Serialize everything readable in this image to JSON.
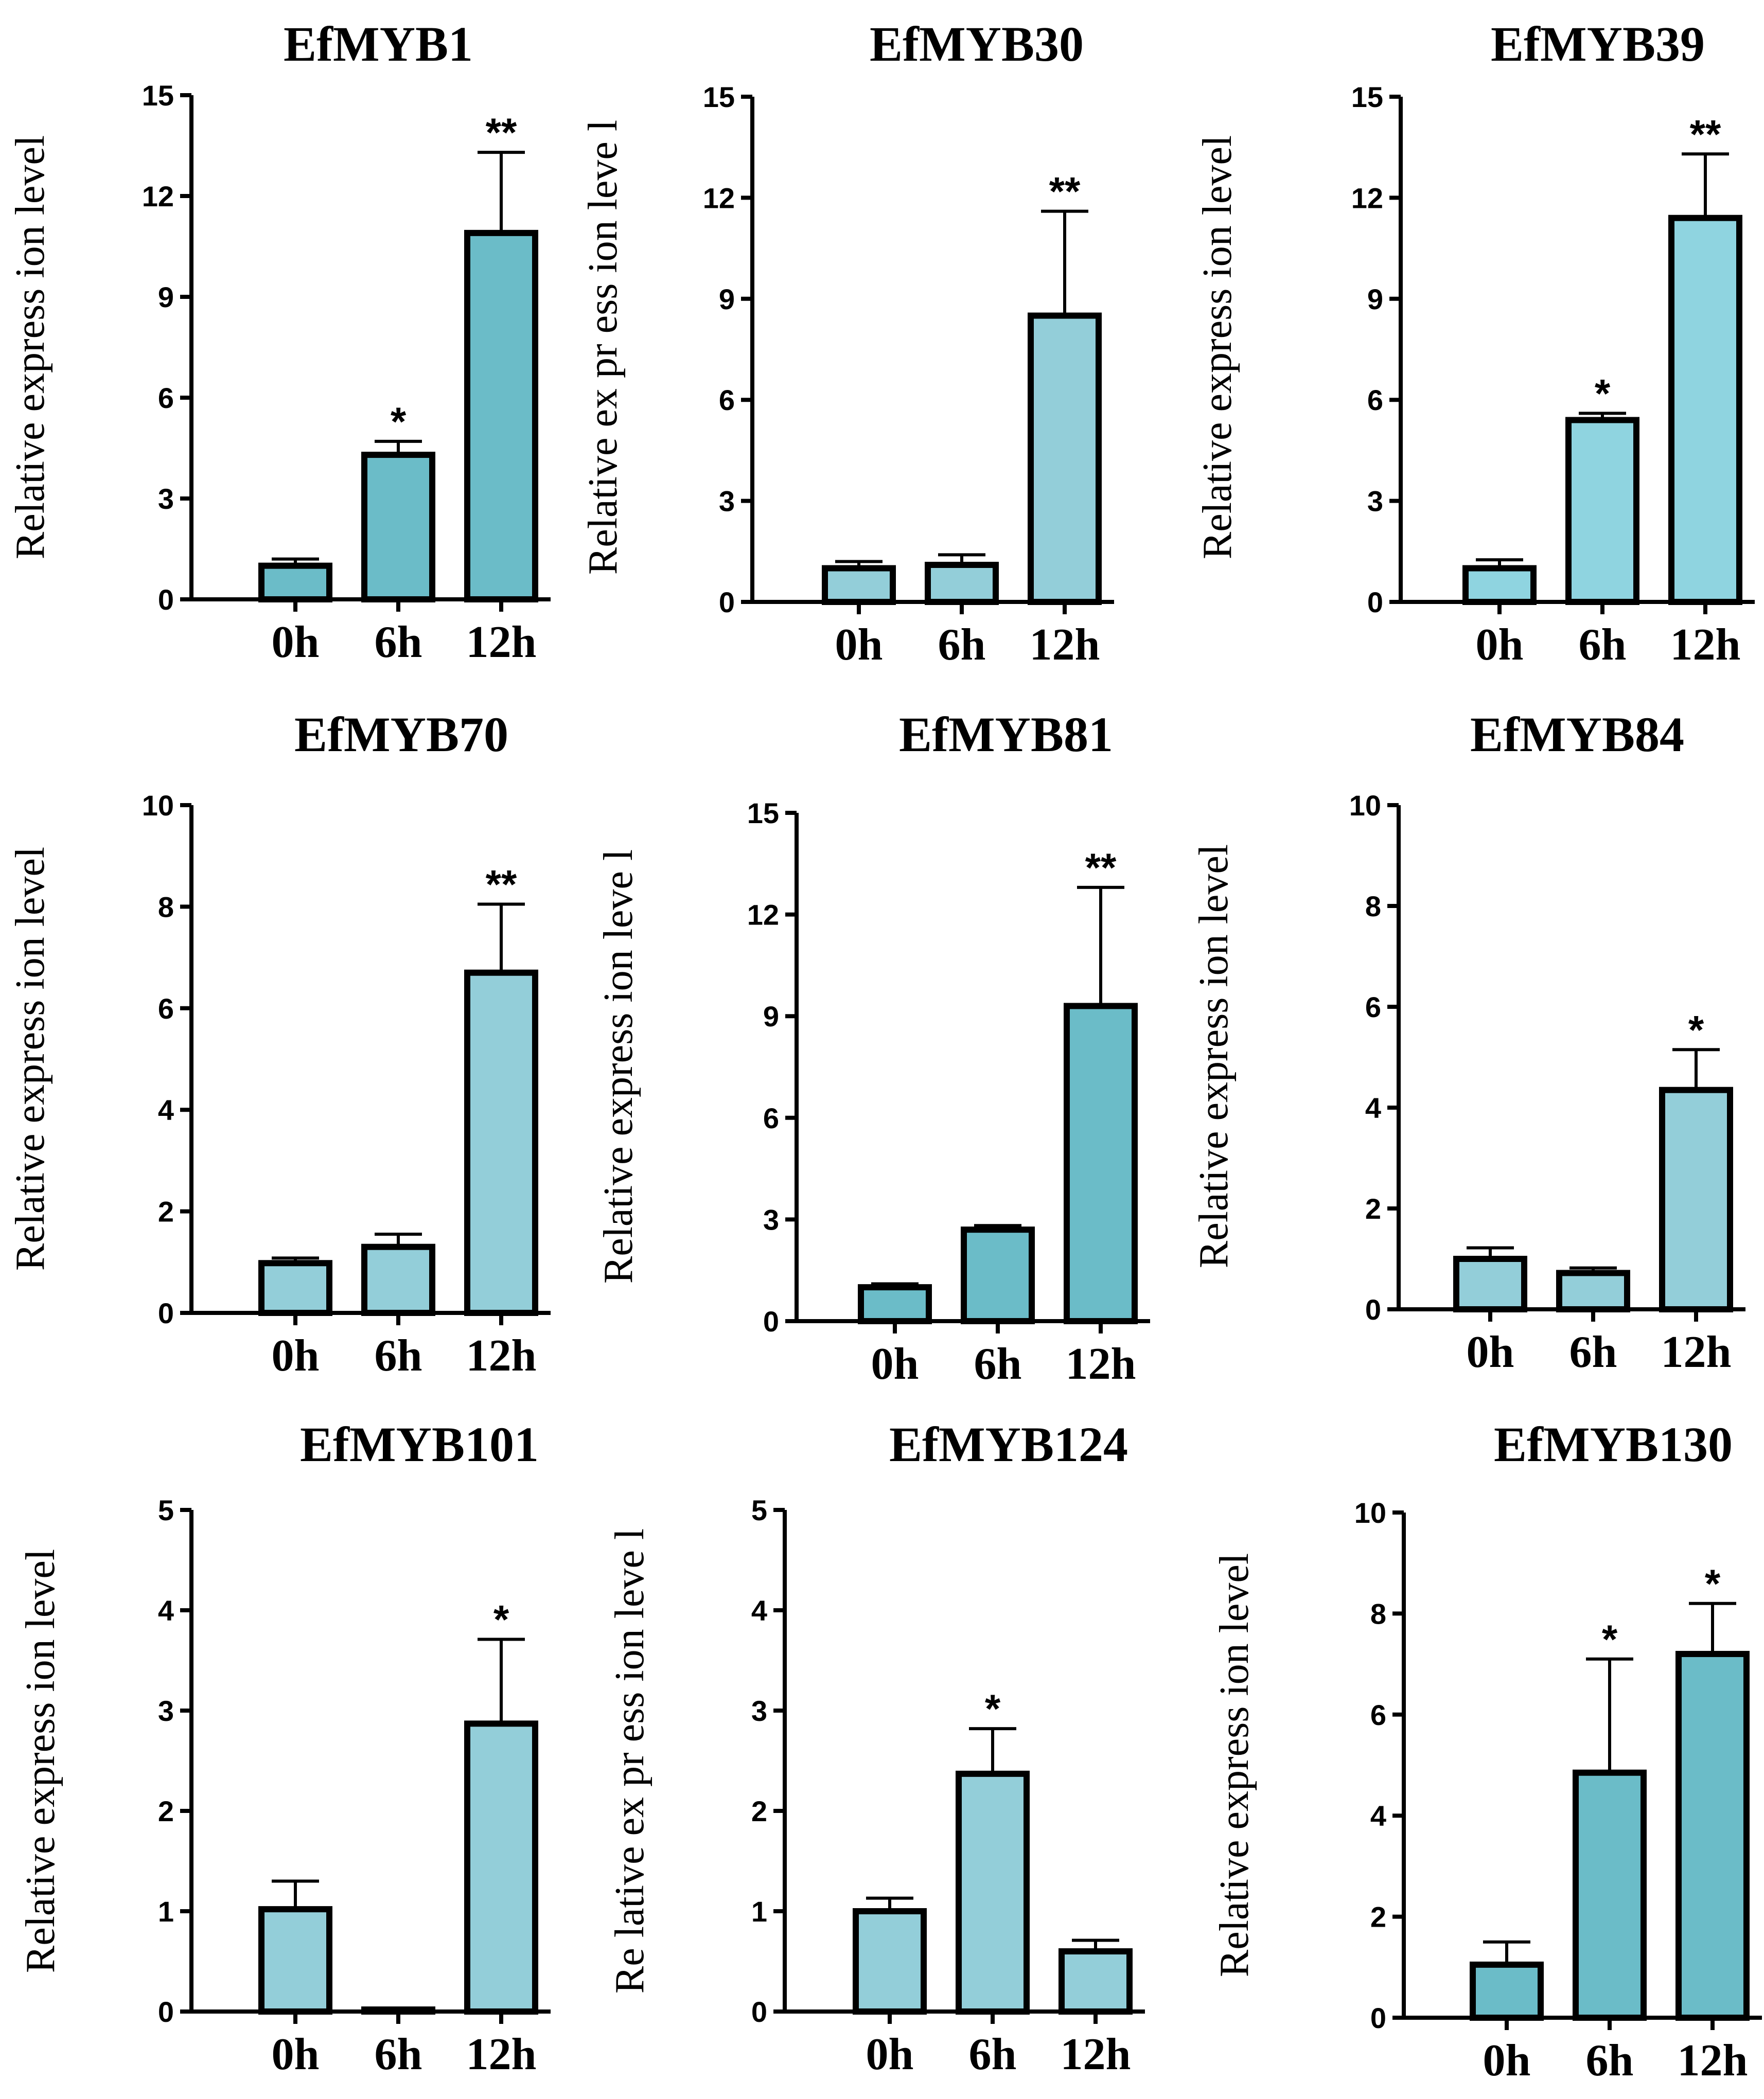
{
  "chart_data": [
    {
      "type": "bar",
      "title": "EfMYB1",
      "ylabel": "Relative express ion level",
      "xlabel": "",
      "categories": [
        "0h",
        "6h",
        "12h"
      ],
      "values": [
        1.0,
        4.3,
        10.9
      ],
      "errors": [
        0.2,
        0.4,
        2.4
      ],
      "significance": [
        "",
        "*",
        "**"
      ],
      "ylim": [
        0,
        15
      ],
      "yticks": [
        0,
        3,
        6,
        9,
        12,
        15
      ],
      "color": "#6bbcc8"
    },
    {
      "type": "bar",
      "title": "EfMYB30",
      "ylabel": "Relative ex pr ess ion leve l",
      "xlabel": "",
      "categories": [
        "0h",
        "6h",
        "12h"
      ],
      "values": [
        1.0,
        1.1,
        8.5
      ],
      "errors": [
        0.2,
        0.3,
        3.1
      ],
      "significance": [
        "",
        "",
        "**"
      ],
      "ylim": [
        0,
        15
      ],
      "yticks": [
        0,
        3,
        6,
        9,
        12,
        15
      ],
      "color": "#93ced9"
    },
    {
      "type": "bar",
      "title": "EfMYB39",
      "ylabel": "Relative express ion level",
      "xlabel": "",
      "categories": [
        "0h",
        "6h",
        "12h"
      ],
      "values": [
        1.0,
        5.4,
        11.4
      ],
      "errors": [
        0.25,
        0.2,
        1.9
      ],
      "significance": [
        "",
        "*",
        "**"
      ],
      "ylim": [
        0,
        15
      ],
      "yticks": [
        0,
        3,
        6,
        9,
        12,
        15
      ],
      "color": "#8fd4e0"
    },
    {
      "type": "bar",
      "title": "EfMYB70",
      "ylabel": "Relative express ion level",
      "xlabel": "",
      "categories": [
        "0h",
        "6h",
        "12h"
      ],
      "values": [
        0.98,
        1.3,
        6.7
      ],
      "errors": [
        0.1,
        0.25,
        1.35
      ],
      "significance": [
        "",
        "",
        "**"
      ],
      "ylim": [
        0,
        10
      ],
      "yticks": [
        0,
        2,
        4,
        6,
        8,
        10
      ],
      "color": "#93ced9"
    },
    {
      "type": "bar",
      "title": "EfMYB81",
      "ylabel": "Relative express ion leve l",
      "xlabel": "",
      "categories": [
        "0h",
        "6h",
        "12h"
      ],
      "values": [
        1.0,
        2.7,
        9.3
      ],
      "errors": [
        0.1,
        0.12,
        3.5
      ],
      "significance": [
        "",
        "",
        "**"
      ],
      "ylim": [
        0,
        15
      ],
      "yticks": [
        0,
        3,
        6,
        9,
        12,
        15
      ],
      "color": "#6bbcc8"
    },
    {
      "type": "bar",
      "title": "EfMYB84",
      "ylabel": "Relative express ion level",
      "xlabel": "",
      "categories": [
        "0h",
        "6h",
        "12h"
      ],
      "values": [
        1.0,
        0.72,
        4.35
      ],
      "errors": [
        0.22,
        0.1,
        0.8
      ],
      "significance": [
        "",
        "",
        "*"
      ],
      "ylim": [
        0,
        10
      ],
      "yticks": [
        0,
        2,
        4,
        6,
        8,
        10
      ],
      "color": "#93ced9"
    },
    {
      "type": "bar",
      "title": "EfMYB101",
      "ylabel": "Relative express ion level",
      "xlabel": "",
      "categories": [
        "0h",
        "6h",
        "12h"
      ],
      "values": [
        1.02,
        0.02,
        2.87
      ],
      "errors": [
        0.28,
        0.01,
        0.84
      ],
      "significance": [
        "",
        "",
        "*"
      ],
      "ylim": [
        0,
        5
      ],
      "yticks": [
        0,
        1,
        2,
        3,
        4,
        5
      ],
      "color": "#93ced9"
    },
    {
      "type": "bar",
      "title": "EfMYB124",
      "ylabel": "Re lative ex pr ess ion leve l",
      "xlabel": "",
      "categories": [
        "0h",
        "6h",
        "12h"
      ],
      "values": [
        1.0,
        2.37,
        0.6
      ],
      "errors": [
        0.13,
        0.45,
        0.11
      ],
      "significance": [
        "",
        "*",
        ""
      ],
      "ylim": [
        0,
        5
      ],
      "yticks": [
        0,
        1,
        2,
        3,
        4,
        5
      ],
      "color": "#93ced9"
    },
    {
      "type": "bar",
      "title": "EfMYB130",
      "ylabel": "Relative express ion level",
      "xlabel": "",
      "categories": [
        "0h",
        "6h",
        "12h"
      ],
      "values": [
        1.05,
        4.85,
        7.2
      ],
      "errors": [
        0.45,
        2.25,
        1.0
      ],
      "significance": [
        "",
        "*",
        "*"
      ],
      "ylim": [
        0,
        10
      ],
      "yticks": [
        0,
        2,
        4,
        6,
        8,
        10
      ],
      "color": "#6bbcc8"
    }
  ]
}
